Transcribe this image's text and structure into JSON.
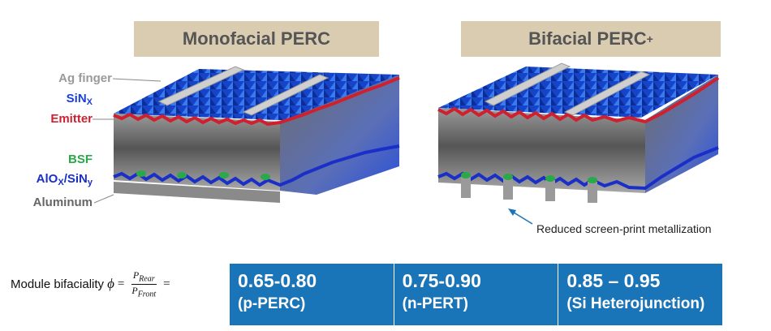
{
  "banners": {
    "left": "Monofacial PERC",
    "right_base": "Bifacial PERC",
    "right_sup": "+"
  },
  "labels": {
    "ag_finger": "Ag finger",
    "sinx": {
      "base": "SiN",
      "sub": "X"
    },
    "emitter": "Emitter",
    "bsf": "BSF",
    "alox": {
      "base": "AlO",
      "sub_x": "X",
      "mid": "/SiN",
      "sub_y": "y"
    },
    "aluminum": "Aluminum"
  },
  "note": "Reduced screen-print metallization",
  "formula": {
    "label": "Module bifaciality",
    "symbol": "ϕ",
    "eq": "=",
    "numerator": "P",
    "numerator_sub": "Rear",
    "denominator": "P",
    "denominator_sub": "Front"
  },
  "table": [
    {
      "value": "0.65-0.80",
      "name": "(p-PERC)"
    },
    {
      "value": "0.75-0.90",
      "name": "(n-PERT)"
    },
    {
      "value": "0.85 – 0.95",
      "name": "(Si Heterojunction)"
    }
  ],
  "colors": {
    "banner": "#d9ccb0",
    "sinx": "#1a3fd6",
    "emitter": "#d0202f",
    "bsf": "#2aa84a",
    "alox": "#1a2fc8",
    "silicon": "#7a7a7a",
    "table": "#1a74b8"
  }
}
